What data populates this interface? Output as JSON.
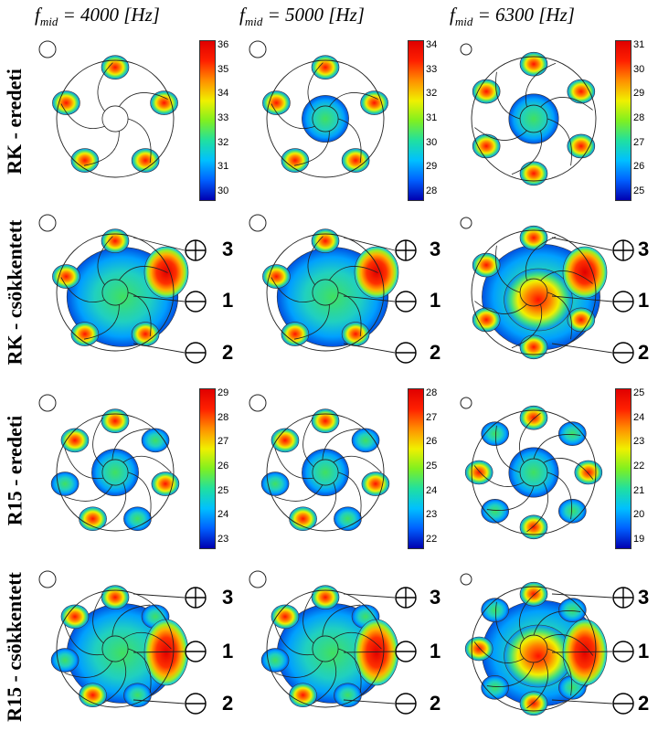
{
  "columns": [
    {
      "prefix": "f",
      "sub": "mid",
      "rest": " = 4000 [Hz]"
    },
    {
      "prefix": "f",
      "sub": "mid",
      "rest": " = 5000 [Hz]"
    },
    {
      "prefix": "f",
      "sub": "mid",
      "rest": " = 6300 [Hz]"
    }
  ],
  "rows": [
    "RK - eredeti",
    "RK - csökkentett",
    "R15 - eredeti",
    "R15 - csökkentett"
  ],
  "colorbars": [
    {
      "ticks": [
        "36",
        "35",
        "34",
        "33",
        "32",
        "31",
        "30"
      ]
    },
    {
      "ticks": [
        "34",
        "33",
        "32",
        "31",
        "30",
        "29",
        "28"
      ]
    },
    {
      "ticks": [
        "31",
        "30",
        "29",
        "28",
        "27",
        "26",
        "25"
      ]
    },
    {
      "ticks": [
        "29",
        "28",
        "27",
        "26",
        "25",
        "24",
        "23"
      ]
    },
    {
      "ticks": [
        "28",
        "27",
        "26",
        "25",
        "24",
        "23",
        "22"
      ]
    },
    {
      "ticks": [
        "25",
        "24",
        "23",
        "22",
        "21",
        "20",
        "19"
      ]
    }
  ],
  "markers": {
    "m3": "3",
    "m1": "1",
    "m2": "2"
  }
}
